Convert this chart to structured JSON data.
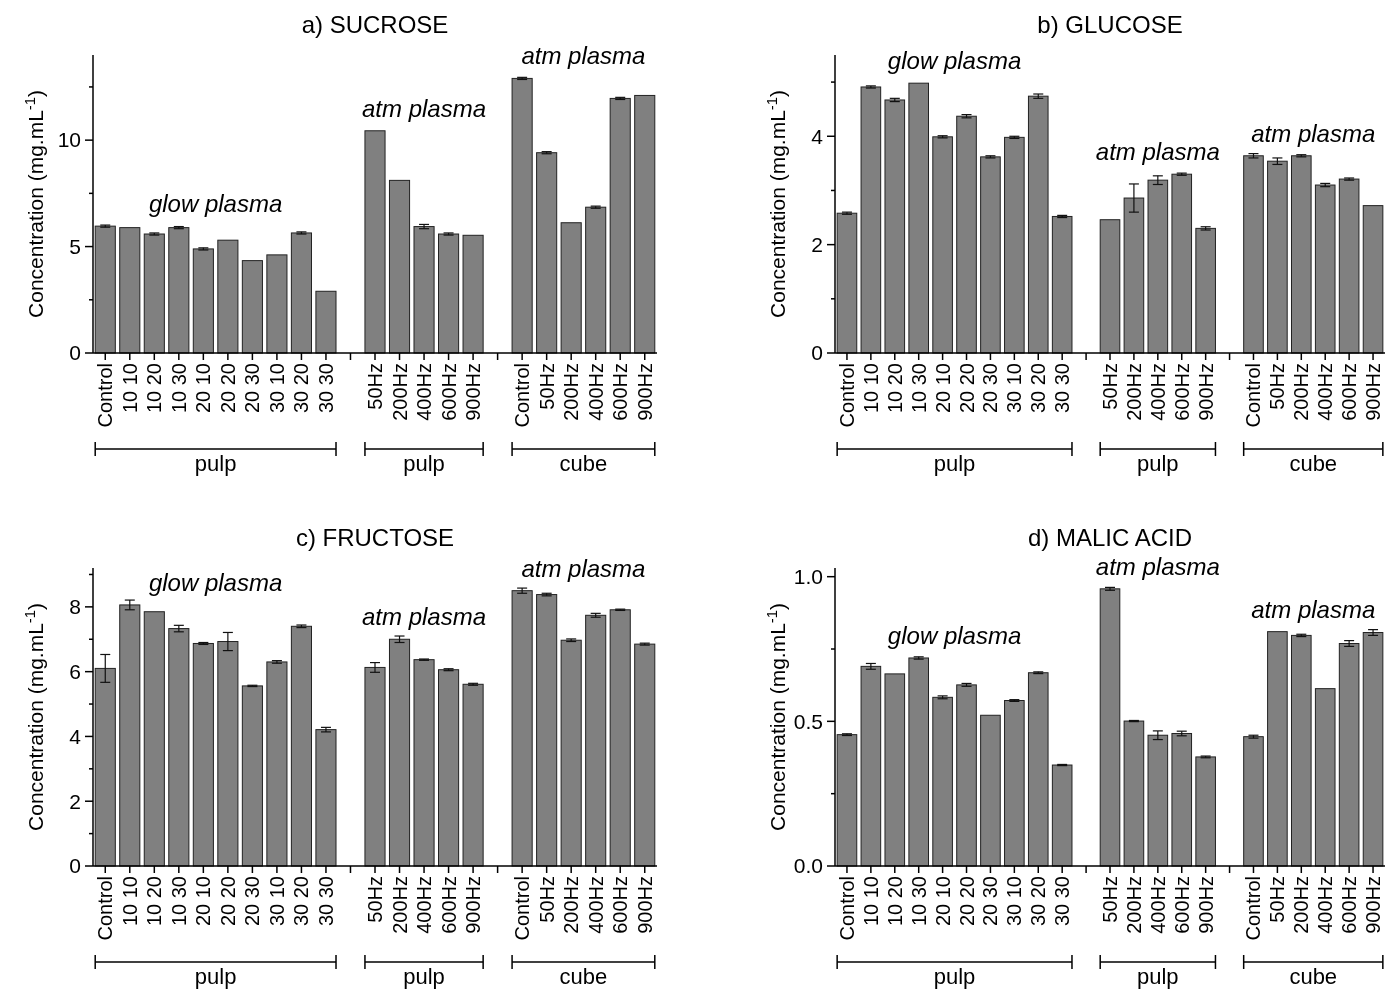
{
  "chart_data": [
    {
      "type": "bar",
      "title": "a) SUCROSE",
      "ylabel": "Concentration (mg.mL$^{-1}$)",
      "color": "#808080",
      "categories": [
        "Control",
        "10 10",
        "10 20",
        "10 30",
        "20 10",
        "20 20",
        "20 30",
        "30 10",
        "30 20",
        "30 30",
        null,
        "50Hz",
        "200Hz",
        "400Hz",
        "600Hz",
        "900Hz",
        null,
        "Control",
        "50Hz",
        "200Hz",
        "400Hz",
        "600Hz",
        "900Hz"
      ],
      "values": [
        5.96,
        5.89,
        5.59,
        5.89,
        4.89,
        5.3,
        4.34,
        4.61,
        5.64,
        2.9,
        null,
        10.44,
        8.11,
        5.94,
        5.59,
        5.53,
        null,
        12.9,
        9.41,
        6.12,
        6.85,
        11.96,
        12.1
      ],
      "errors": [
        0.05,
        null,
        0.05,
        0.05,
        0.05,
        null,
        null,
        null,
        0.05,
        null,
        null,
        null,
        null,
        0.1,
        0.05,
        null,
        null,
        0.05,
        0.05,
        null,
        0.05,
        0.05,
        null
      ],
      "ylim": [
        0,
        14
      ],
      "yticks": [
        0,
        {
          "value": 2.5,
          "label": null
        },
        5,
        {
          "value": 7.5,
          "label": null
        },
        10,
        {
          "value": 12.5,
          "label": null
        }
      ],
      "annotations": [
        "glow plasma",
        "atm plasma",
        "atm plasma",
        "pulp",
        "pulp",
        "cube"
      ]
    },
    {
      "type": "bar",
      "title": "b) GLUCOSE",
      "ylabel": "Concentration (mg.mL$^{-1}$)",
      "color": "#808080",
      "categories": [
        "Control",
        "10 10",
        "10 20",
        "10 30",
        "20 10",
        "20 20",
        "20 30",
        "30 10",
        "30 20",
        "30 30",
        null,
        "50Hz",
        "200Hz",
        "400Hz",
        "600Hz",
        "900Hz",
        null,
        "Control",
        "50Hz",
        "200Hz",
        "400Hz",
        "600Hz",
        "900Hz"
      ],
      "values": [
        2.58,
        4.91,
        4.67,
        4.98,
        3.99,
        4.37,
        3.62,
        3.98,
        4.74,
        2.52,
        null,
        2.46,
        2.86,
        3.19,
        3.3,
        2.3,
        null,
        3.64,
        3.54,
        3.64,
        3.1,
        3.21,
        2.72
      ],
      "errors": [
        0.02,
        0.02,
        0.03,
        null,
        0.02,
        0.03,
        0.02,
        0.02,
        0.04,
        0.02,
        null,
        null,
        0.26,
        0.08,
        0.02,
        0.03,
        null,
        0.04,
        0.06,
        0.02,
        0.03,
        0.02,
        null
      ],
      "ylim": [
        0,
        5.5
      ],
      "yticks": [
        0,
        {
          "value": 1,
          "label": null
        },
        2,
        {
          "value": 3,
          "label": null
        },
        4,
        {
          "value": 5,
          "label": null
        }
      ],
      "annotations": [
        "glow plasma",
        "atm plasma",
        "atm plasma",
        "pulp",
        "pulp",
        "cube"
      ]
    },
    {
      "type": "bar",
      "title": "c) FRUCTOSE",
      "ylabel": "Concentration (mg.mL$^{-1}$)",
      "color": "#808080",
      "categories": [
        "Control",
        "10 10",
        "10 20",
        "10 30",
        "20 10",
        "20 20",
        "20 30",
        "30 10",
        "30 20",
        "30 30",
        null,
        "50Hz",
        "200Hz",
        "400Hz",
        "600Hz",
        "900Hz",
        null,
        "Control",
        "50Hz",
        "200Hz",
        "400Hz",
        "600Hz",
        "900Hz"
      ],
      "values": [
        6.1,
        8.06,
        7.85,
        7.33,
        6.87,
        6.93,
        5.56,
        6.3,
        7.4,
        4.21,
        null,
        6.13,
        7.0,
        6.37,
        6.06,
        5.61,
        null,
        8.5,
        8.38,
        6.97,
        7.74,
        7.91,
        6.85
      ],
      "errors": [
        0.43,
        0.15,
        null,
        0.1,
        0.03,
        0.28,
        0.02,
        0.04,
        0.04,
        0.07,
        null,
        0.15,
        0.1,
        0.02,
        0.03,
        0.03,
        null,
        0.08,
        0.04,
        0.04,
        0.06,
        0.02,
        0.03
      ],
      "ylim": [
        0,
        9.2
      ],
      "yticks": [
        0,
        {
          "value": 1,
          "label": null
        },
        2,
        {
          "value": 3,
          "label": null
        },
        4,
        {
          "value": 5,
          "label": null
        },
        6,
        {
          "value": 7,
          "label": null
        },
        8,
        {
          "value": 9,
          "label": null
        }
      ],
      "annotations": [
        "glow plasma",
        "atm plasma",
        "atm plasma",
        "pulp",
        "pulp",
        "cube"
      ]
    },
    {
      "type": "bar",
      "title": "d) MALIC ACID",
      "ylabel": "Concentration (mg.mL$^{-1}$)",
      "color": "#808080",
      "categories": [
        "Control",
        "10 10",
        "10 20",
        "10 30",
        "20 10",
        "20 20",
        "20 30",
        "30 10",
        "30 20",
        "30 30",
        null,
        "50Hz",
        "200Hz",
        "400Hz",
        "600Hz",
        "900Hz",
        null,
        "Control",
        "50Hz",
        "200Hz",
        "400Hz",
        "600Hz",
        "900Hz"
      ],
      "values": [
        0.454,
        0.69,
        0.664,
        0.719,
        0.583,
        0.626,
        0.521,
        0.572,
        0.668,
        0.349,
        null,
        0.958,
        0.501,
        0.452,
        0.458,
        0.377,
        null,
        0.447,
        0.81,
        0.797,
        0.613,
        0.769,
        0.807
      ],
      "errors": [
        0.003,
        0.01,
        null,
        0.004,
        0.005,
        0.005,
        null,
        0.003,
        0.003,
        0.002,
        null,
        0.005,
        0.002,
        0.015,
        0.008,
        0.003,
        null,
        0.005,
        null,
        0.004,
        null,
        0.01,
        0.01
      ],
      "ylim": [
        0,
        1.03
      ],
      "yticks": [
        {
          "value": 0,
          "label": "0.0"
        },
        {
          "value": 0.25,
          "label": null
        },
        {
          "value": 0.5,
          "label": "0.5"
        },
        {
          "value": 0.75,
          "label": null
        },
        {
          "value": 1,
          "label": "1.0"
        }
      ],
      "annotations": [
        "glow plasma",
        "atm plasma",
        "atm plasma",
        "pulp",
        "pulp",
        "cube"
      ]
    }
  ]
}
